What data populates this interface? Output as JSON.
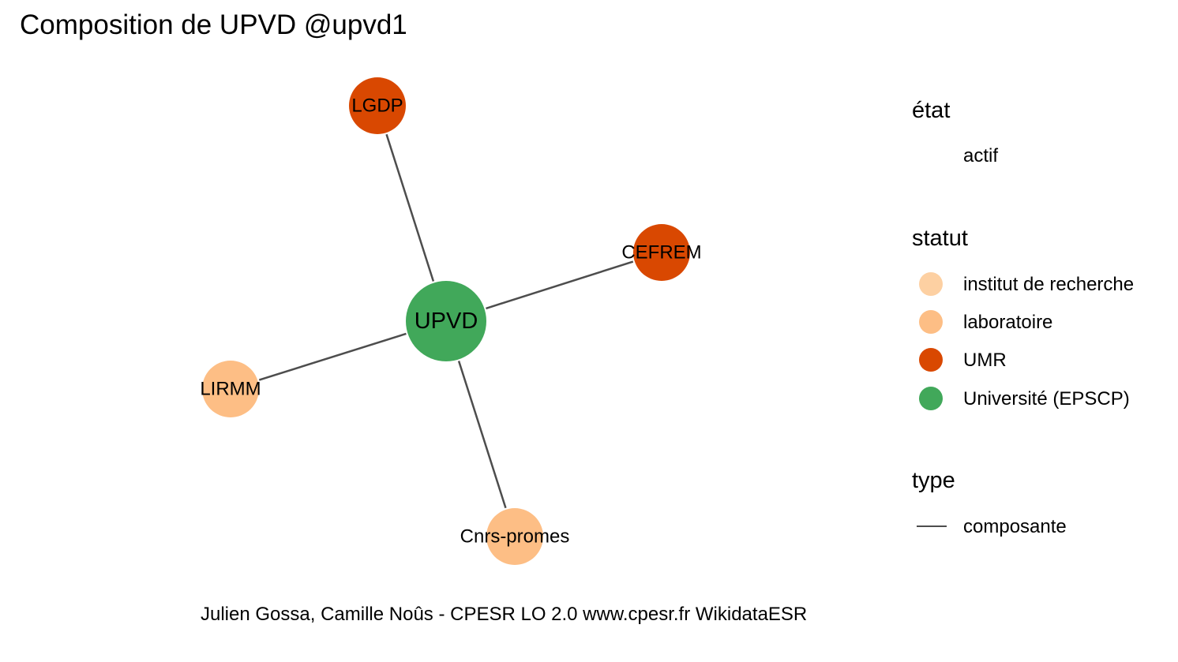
{
  "title": "Composition de UPVD @upvd1",
  "caption": "Julien Gossa, Camille Noûs - CPESR LO 2.0 www.cpesr.fr WikidataESR",
  "colors": {
    "institut_de_recherche": "#fdd0a2",
    "laboratoire": "#fdbe85",
    "UMR": "#d94801",
    "universite": "#41a85a",
    "edge": "#4d4d4d"
  },
  "graph": {
    "nodes": [
      {
        "id": "upvd",
        "label": "UPVD",
        "statut": "Université (EPSCP)",
        "etat": "actif"
      },
      {
        "id": "lgdp",
        "label": "LGDP",
        "statut": "UMR",
        "etat": "actif"
      },
      {
        "id": "cefrem",
        "label": "CEFREM",
        "statut": "UMR",
        "etat": "actif"
      },
      {
        "id": "lirmm",
        "label": "LIRMM",
        "statut": "laboratoire",
        "etat": "actif"
      },
      {
        "id": "cnrs-promes",
        "label": "Cnrs-promes",
        "statut": "laboratoire",
        "etat": "actif"
      }
    ],
    "edges": [
      {
        "from": "upvd",
        "to": "lgdp",
        "type": "composante"
      },
      {
        "from": "upvd",
        "to": "cefrem",
        "type": "composante"
      },
      {
        "from": "upvd",
        "to": "lirmm",
        "type": "composante"
      },
      {
        "from": "upvd",
        "to": "cnrs-promes",
        "type": "composante"
      }
    ]
  },
  "legend": {
    "etat": {
      "title": "état",
      "items": [
        "actif"
      ]
    },
    "statut": {
      "title": "statut",
      "items": [
        "institut de recherche",
        "laboratoire",
        "UMR",
        "Université (EPSCP)"
      ]
    },
    "type": {
      "title": "type",
      "items": [
        "composante"
      ]
    }
  }
}
